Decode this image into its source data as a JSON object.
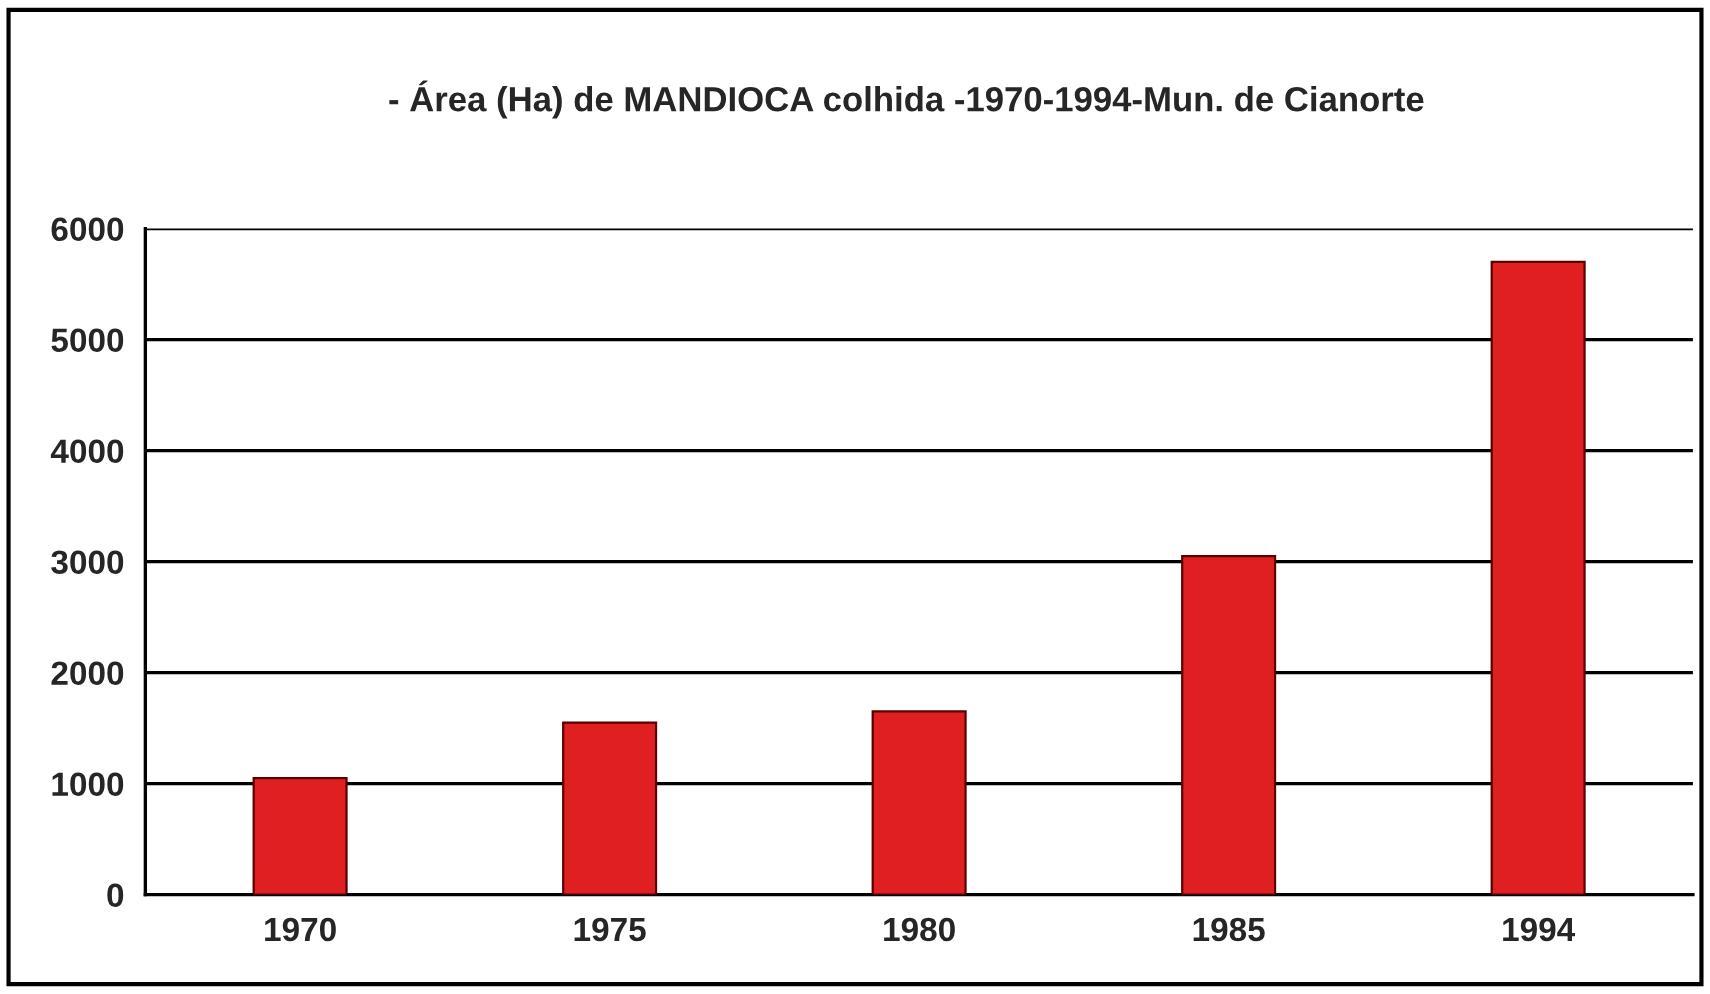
{
  "chart_data": {
    "type": "bar",
    "title": "- Área (Ha) de MANDIOCA colhida -1970-1994-Mun. de Cianorte",
    "categories": [
      "1970",
      "1975",
      "1980",
      "1985",
      "1994"
    ],
    "values": [
      1050,
      1550,
      1650,
      3050,
      5700
    ],
    "color": "#e02020",
    "ylim": [
      0,
      6000
    ],
    "yticks": [
      0,
      1000,
      2000,
      3000,
      4000,
      5000,
      6000
    ],
    "grid": "y"
  }
}
